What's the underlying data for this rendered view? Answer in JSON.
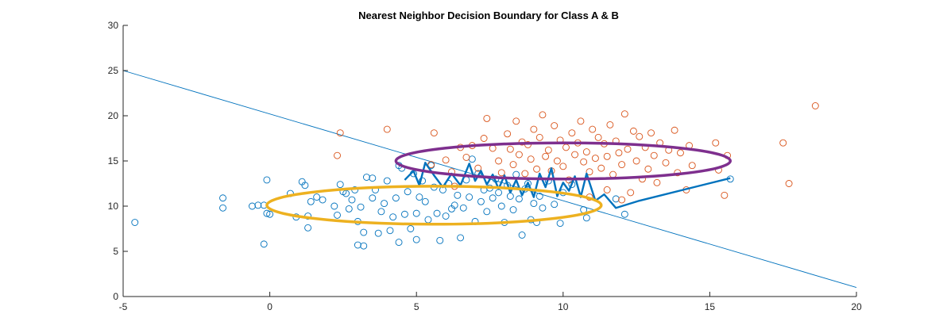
{
  "chart_data": {
    "type": "scatter",
    "title": "Nearest Neighbor Decision Boundary for Class A & B",
    "xlabel": "",
    "ylabel": "",
    "xlim": [
      -5,
      20
    ],
    "ylim": [
      0,
      30
    ],
    "xticks": [
      -5,
      0,
      5,
      10,
      15,
      20
    ],
    "yticks": [
      0,
      5,
      10,
      15,
      20,
      25,
      30
    ],
    "grid": false,
    "legend": "none",
    "colors": {
      "class_a": "#0072BD",
      "class_b": "#D95319",
      "linear_boundary": "#0072BD",
      "nn_boundary": "#0072BD",
      "ellipse_a": "#EDB120",
      "ellipse_b": "#7E2F8E",
      "axis": "#262626"
    },
    "series": [
      {
        "kind": "points",
        "key": "class_a",
        "points": [
          [
            -4.6,
            8.2
          ],
          [
            -1.6,
            10.9
          ],
          [
            -1.6,
            9.8
          ],
          [
            -0.6,
            10.0
          ],
          [
            -0.4,
            10.1
          ],
          [
            -0.2,
            10.1
          ],
          [
            0.0,
            9.1
          ],
          [
            -0.1,
            9.2
          ],
          [
            -0.2,
            5.8
          ],
          [
            -0.1,
            12.9
          ],
          [
            0.7,
            11.4
          ],
          [
            0.9,
            8.8
          ],
          [
            1.1,
            12.7
          ],
          [
            1.2,
            12.3
          ],
          [
            1.3,
            8.9
          ],
          [
            1.3,
            7.6
          ],
          [
            1.4,
            10.5
          ],
          [
            1.6,
            11.0
          ],
          [
            1.8,
            10.7
          ],
          [
            2.2,
            10.0
          ],
          [
            2.3,
            9.0
          ],
          [
            2.4,
            12.4
          ],
          [
            2.5,
            11.6
          ],
          [
            2.6,
            11.4
          ],
          [
            2.7,
            9.7
          ],
          [
            2.8,
            10.7
          ],
          [
            2.9,
            11.8
          ],
          [
            3.0,
            8.3
          ],
          [
            3.0,
            5.7
          ],
          [
            3.2,
            5.6
          ],
          [
            3.1,
            9.9
          ],
          [
            3.2,
            7.1
          ],
          [
            3.3,
            13.2
          ],
          [
            3.5,
            13.1
          ],
          [
            3.5,
            10.9
          ],
          [
            3.6,
            11.8
          ],
          [
            3.7,
            7.0
          ],
          [
            3.8,
            9.4
          ],
          [
            3.9,
            10.3
          ],
          [
            4.0,
            12.8
          ],
          [
            4.1,
            7.3
          ],
          [
            4.2,
            8.8
          ],
          [
            4.3,
            10.9
          ],
          [
            4.4,
            6.0
          ],
          [
            4.4,
            14.5
          ],
          [
            4.5,
            14.2
          ],
          [
            4.6,
            9.1
          ],
          [
            4.7,
            11.6
          ],
          [
            4.8,
            7.5
          ],
          [
            4.9,
            13.6
          ],
          [
            5.0,
            9.2
          ],
          [
            5.0,
            6.3
          ],
          [
            5.1,
            11.0
          ],
          [
            5.2,
            12.8
          ],
          [
            5.3,
            10.5
          ],
          [
            5.4,
            8.5
          ],
          [
            5.5,
            14.5
          ],
          [
            5.6,
            12.1
          ],
          [
            5.7,
            9.2
          ],
          [
            5.8,
            6.2
          ],
          [
            5.9,
            11.8
          ],
          [
            6.0,
            8.9
          ],
          [
            6.1,
            12.5
          ],
          [
            6.2,
            9.7
          ],
          [
            6.3,
            10.1
          ],
          [
            6.4,
            11.2
          ],
          [
            6.5,
            6.5
          ],
          [
            6.6,
            9.8
          ],
          [
            6.7,
            12.9
          ],
          [
            6.8,
            11.0
          ],
          [
            6.9,
            15.2
          ],
          [
            7.0,
            8.3
          ],
          [
            7.1,
            13.6
          ],
          [
            7.2,
            10.5
          ],
          [
            7.3,
            11.8
          ],
          [
            7.4,
            9.4
          ],
          [
            7.5,
            12.0
          ],
          [
            7.6,
            10.9
          ],
          [
            7.7,
            13.0
          ],
          [
            7.8,
            11.5
          ],
          [
            7.9,
            10.0
          ],
          [
            8.0,
            8.2
          ],
          [
            8.1,
            12.3
          ],
          [
            8.2,
            11.1
          ],
          [
            8.3,
            9.6
          ],
          [
            8.4,
            13.5
          ],
          [
            8.5,
            10.8
          ],
          [
            8.6,
            6.8
          ],
          [
            8.7,
            11.9
          ],
          [
            8.8,
            12.5
          ],
          [
            8.9,
            8.5
          ],
          [
            9.0,
            10.3
          ],
          [
            9.1,
            8.2
          ],
          [
            9.2,
            11.1
          ],
          [
            9.3,
            9.8
          ],
          [
            9.5,
            12.8
          ],
          [
            9.7,
            10.2
          ],
          [
            9.9,
            8.1
          ],
          [
            10.0,
            11.5
          ],
          [
            10.3,
            12.4
          ],
          [
            10.7,
            9.6
          ],
          [
            10.8,
            8.7
          ],
          [
            11.8,
            10.8
          ],
          [
            12.1,
            9.1
          ],
          [
            15.7,
            13.0
          ]
        ]
      },
      {
        "kind": "points",
        "key": "class_b",
        "points": [
          [
            2.4,
            18.1
          ],
          [
            2.3,
            15.6
          ],
          [
            4.0,
            18.5
          ],
          [
            5.6,
            18.1
          ],
          [
            5.5,
            14.6
          ],
          [
            6.0,
            15.1
          ],
          [
            6.2,
            13.8
          ],
          [
            6.3,
            12.2
          ],
          [
            6.5,
            16.5
          ],
          [
            6.7,
            15.4
          ],
          [
            6.9,
            16.7
          ],
          [
            7.1,
            14.2
          ],
          [
            7.3,
            17.5
          ],
          [
            7.4,
            19.7
          ],
          [
            7.6,
            16.4
          ],
          [
            7.8,
            15.0
          ],
          [
            7.9,
            13.7
          ],
          [
            8.1,
            18.0
          ],
          [
            8.2,
            16.3
          ],
          [
            8.3,
            14.6
          ],
          [
            8.4,
            19.4
          ],
          [
            8.5,
            15.7
          ],
          [
            8.6,
            17.1
          ],
          [
            8.7,
            13.6
          ],
          [
            8.8,
            16.8
          ],
          [
            8.9,
            15.2
          ],
          [
            9.0,
            18.5
          ],
          [
            9.1,
            14.1
          ],
          [
            9.2,
            17.6
          ],
          [
            9.3,
            20.1
          ],
          [
            9.4,
            15.5
          ],
          [
            9.5,
            16.2
          ],
          [
            9.6,
            13.9
          ],
          [
            9.7,
            18.9
          ],
          [
            9.8,
            15.0
          ],
          [
            9.9,
            17.3
          ],
          [
            10.0,
            14.4
          ],
          [
            10.1,
            16.5
          ],
          [
            10.2,
            12.9
          ],
          [
            10.3,
            18.1
          ],
          [
            10.4,
            15.7
          ],
          [
            10.5,
            17.0
          ],
          [
            10.6,
            19.4
          ],
          [
            10.7,
            14.9
          ],
          [
            10.8,
            16.0
          ],
          [
            10.9,
            13.8
          ],
          [
            11.0,
            18.5
          ],
          [
            11.1,
            15.3
          ],
          [
            11.2,
            17.6
          ],
          [
            11.3,
            14.2
          ],
          [
            11.4,
            16.9
          ],
          [
            11.5,
            15.5
          ],
          [
            11.6,
            19.0
          ],
          [
            11.7,
            13.5
          ],
          [
            11.8,
            17.2
          ],
          [
            11.9,
            15.9
          ],
          [
            12.0,
            14.6
          ],
          [
            12.1,
            20.2
          ],
          [
            12.2,
            16.3
          ],
          [
            12.3,
            11.5
          ],
          [
            12.4,
            18.3
          ],
          [
            12.5,
            15.0
          ],
          [
            12.6,
            17.7
          ],
          [
            12.7,
            13.0
          ],
          [
            12.8,
            16.5
          ],
          [
            12.9,
            14.1
          ],
          [
            13.0,
            18.1
          ],
          [
            13.1,
            15.6
          ],
          [
            13.2,
            12.6
          ],
          [
            13.3,
            17.0
          ],
          [
            13.5,
            14.8
          ],
          [
            13.6,
            16.2
          ],
          [
            13.8,
            18.4
          ],
          [
            13.9,
            13.7
          ],
          [
            14.0,
            15.9
          ],
          [
            14.2,
            11.8
          ],
          [
            14.3,
            16.7
          ],
          [
            14.4,
            14.5
          ],
          [
            15.2,
            17.0
          ],
          [
            15.3,
            14.0
          ],
          [
            15.5,
            11.2
          ],
          [
            15.6,
            15.6
          ],
          [
            17.5,
            17.0
          ],
          [
            17.7,
            12.5
          ],
          [
            18.6,
            21.1
          ],
          [
            10.9,
            11.0
          ],
          [
            11.5,
            11.8
          ],
          [
            12.0,
            10.7
          ]
        ]
      },
      {
        "kind": "line",
        "key": "linear_boundary",
        "points": [
          [
            -5,
            25
          ],
          [
            20,
            1
          ]
        ]
      },
      {
        "kind": "line",
        "key": "nn_boundary",
        "points": [
          [
            4.6,
            12.9
          ],
          [
            4.9,
            13.9
          ],
          [
            5.1,
            12.3
          ],
          [
            5.3,
            14.8
          ],
          [
            5.6,
            13.4
          ],
          [
            5.9,
            12.1
          ],
          [
            6.2,
            13.6
          ],
          [
            6.5,
            12.3
          ],
          [
            6.8,
            14.7
          ],
          [
            7.0,
            12.8
          ],
          [
            7.2,
            13.9
          ],
          [
            7.4,
            12.4
          ],
          [
            7.6,
            13.5
          ],
          [
            7.8,
            11.9
          ],
          [
            8.0,
            13.4
          ],
          [
            8.2,
            11.5
          ],
          [
            8.4,
            12.9
          ],
          [
            8.6,
            11.2
          ],
          [
            8.8,
            12.6
          ],
          [
            9.0,
            11.0
          ],
          [
            9.2,
            13.6
          ],
          [
            9.4,
            12.1
          ],
          [
            9.6,
            14.2
          ],
          [
            9.8,
            11.1
          ],
          [
            10.0,
            12.6
          ],
          [
            10.2,
            11.7
          ],
          [
            10.4,
            13.3
          ],
          [
            10.6,
            11.0
          ],
          [
            10.8,
            13.6
          ],
          [
            11.1,
            10.6
          ],
          [
            11.4,
            11.3
          ],
          [
            11.8,
            9.8
          ],
          [
            12.6,
            10.6
          ],
          [
            15.7,
            13.1
          ]
        ]
      },
      {
        "kind": "ellipse",
        "key": "ellipse_a",
        "center": [
          5.6,
          10.1
        ],
        "radii": [
          5.7,
          2.1
        ]
      },
      {
        "kind": "ellipse",
        "key": "ellipse_b",
        "center": [
          10.0,
          15.0
        ],
        "radii": [
          5.7,
          2.0
        ]
      }
    ]
  }
}
